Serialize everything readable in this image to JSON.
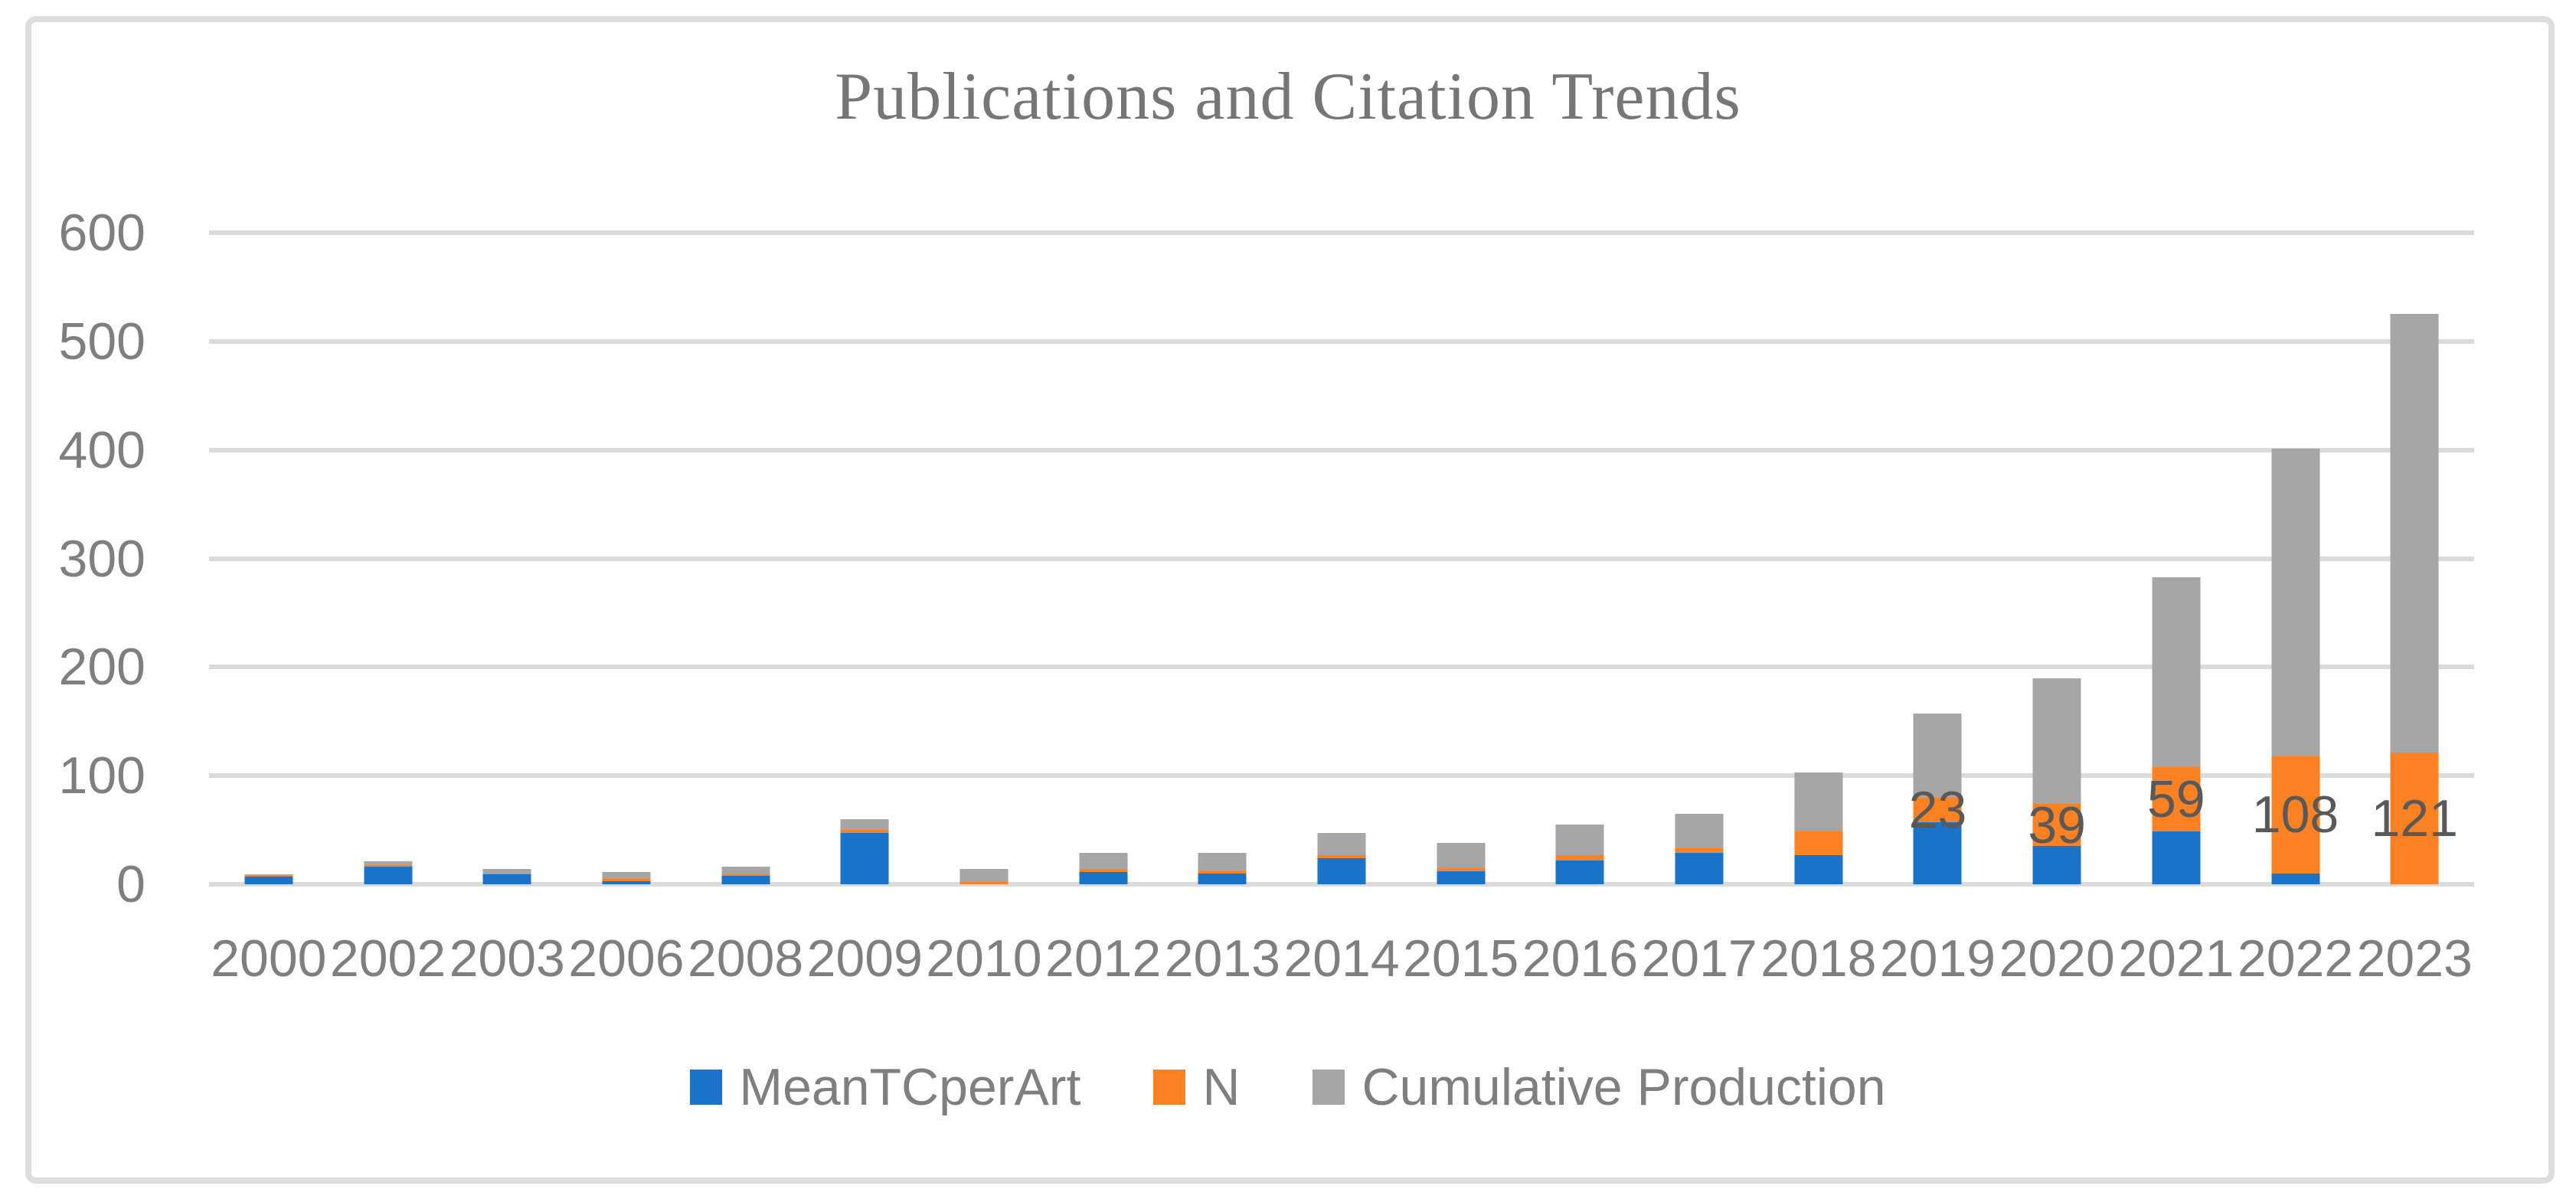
{
  "title": "Publications and Citation Trends",
  "colors": {
    "mean_tc_blue": "#1A73C8",
    "n_orange": "#FB8122",
    "cumulative_gray": "#A6A6A6",
    "gridline": "#DBDBDB",
    "frame_border": "#DDDDDD",
    "axis_text": "#7f7f7f",
    "title_text": "#767676",
    "data_label_text": "#595959",
    "background": "#ffffff"
  },
  "legend": {
    "position": "bottom",
    "items": [
      {
        "label": "MeanTCperArt",
        "color": "#1A73C8"
      },
      {
        "label": "N",
        "color": "#FB8122"
      },
      {
        "label": "Cumulative Production",
        "color": "#A6A6A6"
      }
    ]
  },
  "chart_data": {
    "type": "bar",
    "stacked": true,
    "title": "Publications and Citation Trends",
    "xlabel": "",
    "ylabel": "",
    "categories": [
      "2000",
      "2002",
      "2003",
      "2006",
      "2008",
      "2009",
      "2010",
      "2012",
      "2013",
      "2014",
      "2015",
      "2016",
      "2017",
      "2018",
      "2019",
      "2020",
      "2021",
      "2022",
      "2023"
    ],
    "series": [
      {
        "name": "MeanTCperArt",
        "color": "#1A73C8",
        "values": [
          7,
          16,
          9,
          3,
          8,
          47,
          0,
          11,
          10,
          24,
          12,
          22,
          29,
          27,
          57,
          35,
          49,
          10,
          0
        ]
      },
      {
        "name": "N",
        "color": "#FB8122",
        "values": [
          1,
          2,
          1,
          2,
          1,
          3,
          2,
          3,
          2,
          3,
          3,
          5,
          4,
          22,
          23,
          39,
          59,
          108,
          121
        ]
      },
      {
        "name": "Cumulative Production",
        "color": "#A6A6A6",
        "values": [
          1,
          3,
          4,
          6,
          7,
          10,
          12,
          15,
          17,
          20,
          23,
          28,
          32,
          54,
          77,
          116,
          175,
          283,
          404
        ]
      }
    ],
    "data_labels": {
      "series": "N",
      "position": "center-of-n-segment",
      "values": [
        null,
        null,
        null,
        null,
        null,
        null,
        null,
        null,
        null,
        null,
        null,
        null,
        null,
        null,
        "23",
        "39",
        "59",
        "108",
        "121"
      ]
    },
    "y_axis": {
      "min": 0,
      "max": 600,
      "tick_step": 100,
      "ticks": [
        "600",
        "500",
        "400",
        "300",
        "200",
        "100",
        "0"
      ]
    },
    "grid": true,
    "legend_position": "bottom"
  }
}
